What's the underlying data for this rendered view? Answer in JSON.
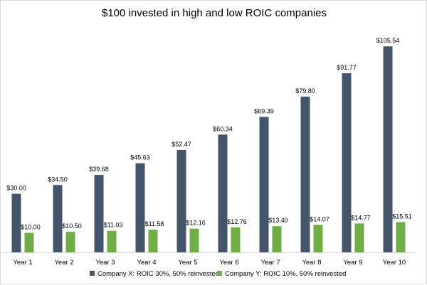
{
  "chart_data": {
    "type": "bar",
    "title": "$100 invested in high and low ROIC companies",
    "xlabel": "",
    "ylabel": "",
    "ylim": [
      0,
      110
    ],
    "grid": false,
    "legend_position": "bottom",
    "categories": [
      "Year 1",
      "Year 2",
      "Year 3",
      "Year 4",
      "Year 5",
      "Year 6",
      "Year 7",
      "Year 8",
      "Year 9",
      "Year 10"
    ],
    "series": [
      {
        "name": "Company X: ROIC 30%, 50% reinvested",
        "color": "#44546a",
        "values": [
          30.0,
          34.5,
          39.68,
          45.63,
          52.47,
          60.34,
          69.39,
          79.8,
          91.77,
          105.54
        ],
        "labels": [
          "$30.00",
          "$34.50",
          "$39.68",
          "$45.63",
          "$52.47",
          "$60.34",
          "$69.39",
          "$79.80",
          "$91.77",
          "$105.54"
        ]
      },
      {
        "name": "Company Y: ROIC 10%, 50% reinvested",
        "color": "#70ad47",
        "values": [
          10.0,
          10.5,
          11.03,
          11.58,
          12.16,
          12.76,
          13.4,
          14.07,
          14.77,
          15.51
        ],
        "labels": [
          "$10.00",
          "$10.50",
          "$11.03",
          "$11.58",
          "$12.16",
          "$12.76",
          "$13.40",
          "$14.07",
          "$14.77",
          "$15.51"
        ]
      }
    ]
  }
}
